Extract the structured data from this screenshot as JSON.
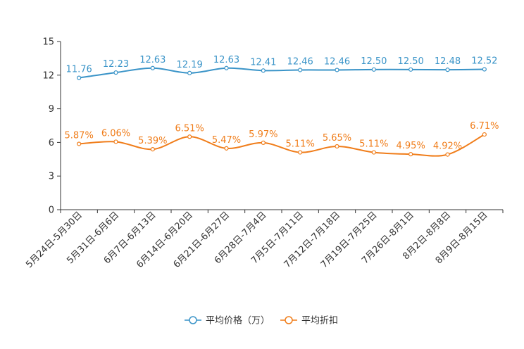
{
  "chart_data": {
    "type": "line",
    "title": "",
    "xlabel": "",
    "ylabel": "",
    "ylim": [
      0,
      15
    ],
    "yticks": [
      0,
      3,
      6,
      9,
      12,
      15
    ],
    "grid": false,
    "legend_position": "bottom-center",
    "categories": [
      "5月24日-5月30日",
      "5月31日-6月6日",
      "6月7日-6月13日",
      "6月14日-6月20日",
      "6月21日-6月27日",
      "6月28日-7月4日",
      "7月5日-7月11日",
      "7月12日-7月18日",
      "7月19日-7月25日",
      "7月26日-8月1日",
      "8月2日-8月8日",
      "8月9日-8月15日"
    ],
    "series": [
      {
        "name": "平均价格（万）",
        "color": "#3a94c8",
        "values": [
          11.76,
          12.23,
          12.63,
          12.19,
          12.63,
          12.41,
          12.46,
          12.46,
          12.5,
          12.5,
          12.48,
          12.52
        ],
        "labels": [
          "11.76",
          "12.23",
          "12.63",
          "12.19",
          "12.63",
          "12.41",
          "12.46",
          "12.46",
          "12.50",
          "12.50",
          "12.48",
          "12.52"
        ]
      },
      {
        "name": "平均折扣",
        "color": "#f07d1a",
        "values": [
          5.87,
          6.06,
          5.39,
          6.51,
          5.47,
          5.97,
          5.11,
          5.65,
          5.11,
          4.95,
          4.92,
          6.71
        ],
        "labels": [
          "5.87%",
          "6.06%",
          "5.39%",
          "6.51%",
          "5.47%",
          "5.97%",
          "5.11%",
          "5.65%",
          "5.11%",
          "4.95%",
          "4.92%",
          "6.71%"
        ]
      }
    ]
  }
}
